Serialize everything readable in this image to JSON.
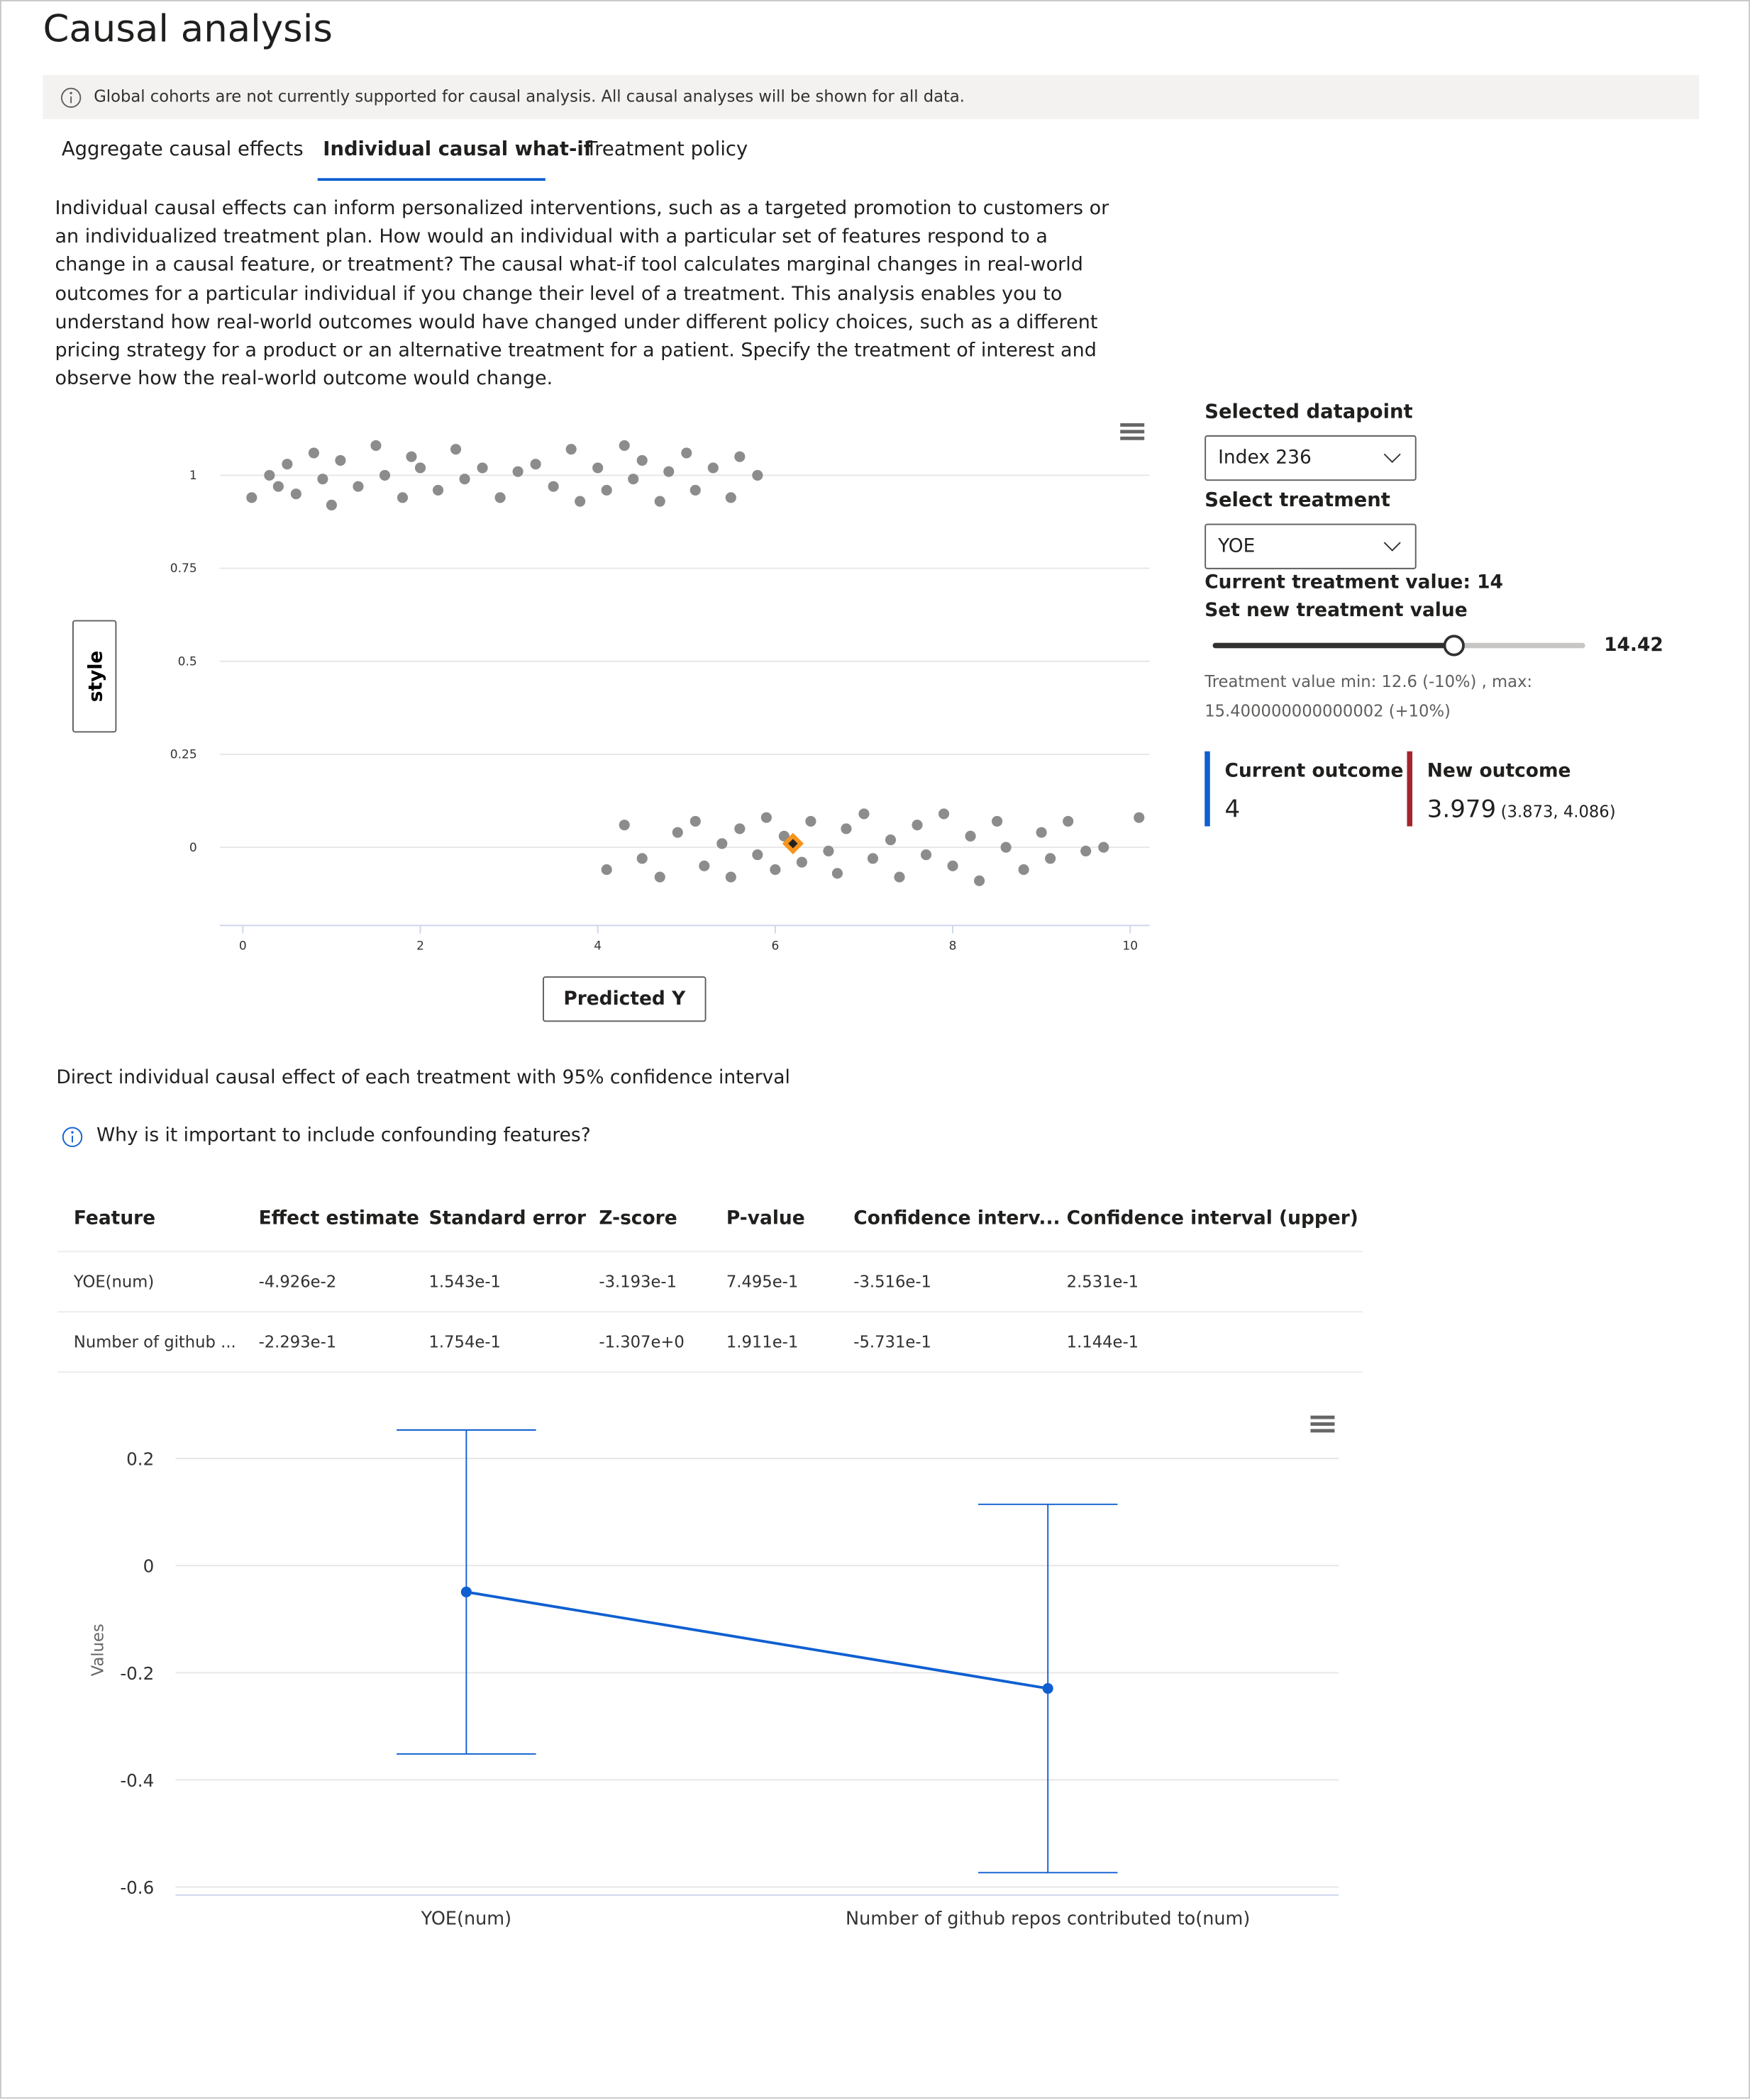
{
  "header": {
    "title": "Causal analysis"
  },
  "notice": "Global cohorts are not currently supported for causal analysis. All causal analyses will be shown for all data.",
  "tabs": [
    "Aggregate causal effects",
    "Individual causal what-if",
    "Treatment policy"
  ],
  "active_tab": 1,
  "description": "Individual causal effects can inform personalized interventions, such as a targeted promotion to customers or an individualized treatment plan. How would an individual with a particular set of features respond to a change in a causal feature, or treatment? The causal what-if tool calculates marginal changes in real-world outcomes for a particular individual if you change their level of a treatment. This analysis enables you to understand how real-world outcomes would have changed under different policy choices, such as a different pricing strategy for a product or an alternative treatment for a patient. Specify the treatment of interest and observe how the real-world outcome would change.",
  "controls": {
    "selected_datapoint_label": "Selected datapoint",
    "selected_datapoint": "Index 236",
    "treatment_label": "Select treatment",
    "treatment": "YOE",
    "current_treatment": "Current treatment value: 14",
    "new_treatment_label": "Set new treatment value",
    "slider": {
      "min": 12.6,
      "max": 15.400000000000002,
      "value": 14.42
    },
    "range_text": "Treatment value min: 12.6 (-10%) , max: 15.400000000000002 (+10%)"
  },
  "outcomes": {
    "current": {
      "label": "Current outcome",
      "value": 4,
      "color": "#0f5fd1"
    },
    "new": {
      "label": "New outcome",
      "value": 3.979,
      "ci": "(3.873, 4.086)",
      "color": "#a4262c"
    }
  },
  "section_title": "Direct individual causal effect of each treatment with 95% confidence interval",
  "info_link": "Why is it important to include confounding features?",
  "table": {
    "columns": [
      "Feature",
      "Effect estimate",
      "Standard error",
      "Z-score",
      "P-value",
      "Confidence interv...",
      "Confidence interval (upper)"
    ],
    "rows": [
      [
        "YOE(num)",
        "-4.926e-2",
        "1.543e-1",
        "-3.193e-1",
        "7.495e-1",
        "-3.516e-1",
        "2.531e-1"
      ],
      [
        "Number of github ...",
        "-2.293e-1",
        "1.754e-1",
        "-1.307e+0",
        "1.911e-1",
        "-5.731e-1",
        "1.144e-1"
      ]
    ]
  },
  "chart_data": [
    {
      "type": "scatter",
      "x_axis_label": "Predicted Y",
      "y_axis_label": "style",
      "color": "#8c8c8c",
      "grid": true,
      "xlim": [
        -0.26,
        10.22
      ],
      "ylim": [
        -0.21,
        1.14
      ],
      "xticks": [
        0,
        2,
        4,
        6,
        8,
        10
      ],
      "yticks": [
        0,
        0.25,
        0.5,
        0.75,
        1
      ],
      "x": [
        0.1,
        0.3,
        0.4,
        0.5,
        0.6,
        0.8,
        0.9,
        1.0,
        1.1,
        1.3,
        1.5,
        1.6,
        1.8,
        1.9,
        2.0,
        2.2,
        2.4,
        2.5,
        2.7,
        2.9,
        3.1,
        3.3,
        3.5,
        3.7,
        3.8,
        4.0,
        4.1,
        4.3,
        4.4,
        4.5,
        4.7,
        4.8,
        5.0,
        5.1,
        5.3,
        5.5,
        5.6,
        5.8,
        4.1,
        4.3,
        4.5,
        4.7,
        4.9,
        5.1,
        5.2,
        5.4,
        5.5,
        5.6,
        5.8,
        5.9,
        6.0,
        6.1,
        6.3,
        6.4,
        6.6,
        6.7,
        6.8,
        7.0,
        7.1,
        7.3,
        7.4,
        7.6,
        7.7,
        7.9,
        8.0,
        8.2,
        8.3,
        8.5,
        8.6,
        8.8,
        9.0,
        9.1,
        9.3,
        9.5,
        9.7,
        10.1
      ],
      "y": [
        0.94,
        1.0,
        0.97,
        1.03,
        0.95,
        1.06,
        0.99,
        0.92,
        1.04,
        0.97,
        1.08,
        1.0,
        0.94,
        1.05,
        1.02,
        0.96,
        1.07,
        0.99,
        1.02,
        0.94,
        1.01,
        1.03,
        0.97,
        1.07,
        0.93,
        1.02,
        0.96,
        1.08,
        0.99,
        1.04,
        0.93,
        1.01,
        1.06,
        0.96,
        1.02,
        0.94,
        1.05,
        1.0,
        -0.06,
        0.06,
        -0.03,
        -0.08,
        0.04,
        0.07,
        -0.05,
        0.01,
        -0.08,
        0.05,
        -0.02,
        0.08,
        -0.06,
        0.03,
        -0.04,
        0.07,
        -0.01,
        -0.07,
        0.05,
        0.09,
        -0.03,
        0.02,
        -0.08,
        0.06,
        -0.02,
        0.09,
        -0.05,
        0.03,
        -0.09,
        0.07,
        0.0,
        -0.06,
        0.04,
        -0.03,
        0.07,
        -0.01,
        0.0,
        0.08
      ],
      "highlight": {
        "x": 6.2,
        "y": 0.01,
        "color": "#f7941d"
      }
    },
    {
      "type": "errorbar",
      "y_axis_label": "Values",
      "color": "#0f5fd1",
      "grid": true,
      "categories": [
        "YOE(num)",
        "Number of github repos contributed to(num)"
      ],
      "values": [
        -0.04926,
        -0.2293
      ],
      "lower": [
        -0.3516,
        -0.5731
      ],
      "upper": [
        0.2531,
        0.1144
      ],
      "ylim": [
        -0.61,
        0.295
      ],
      "yticks": [
        0.2,
        0,
        -0.2,
        -0.4,
        -0.6
      ]
    }
  ]
}
